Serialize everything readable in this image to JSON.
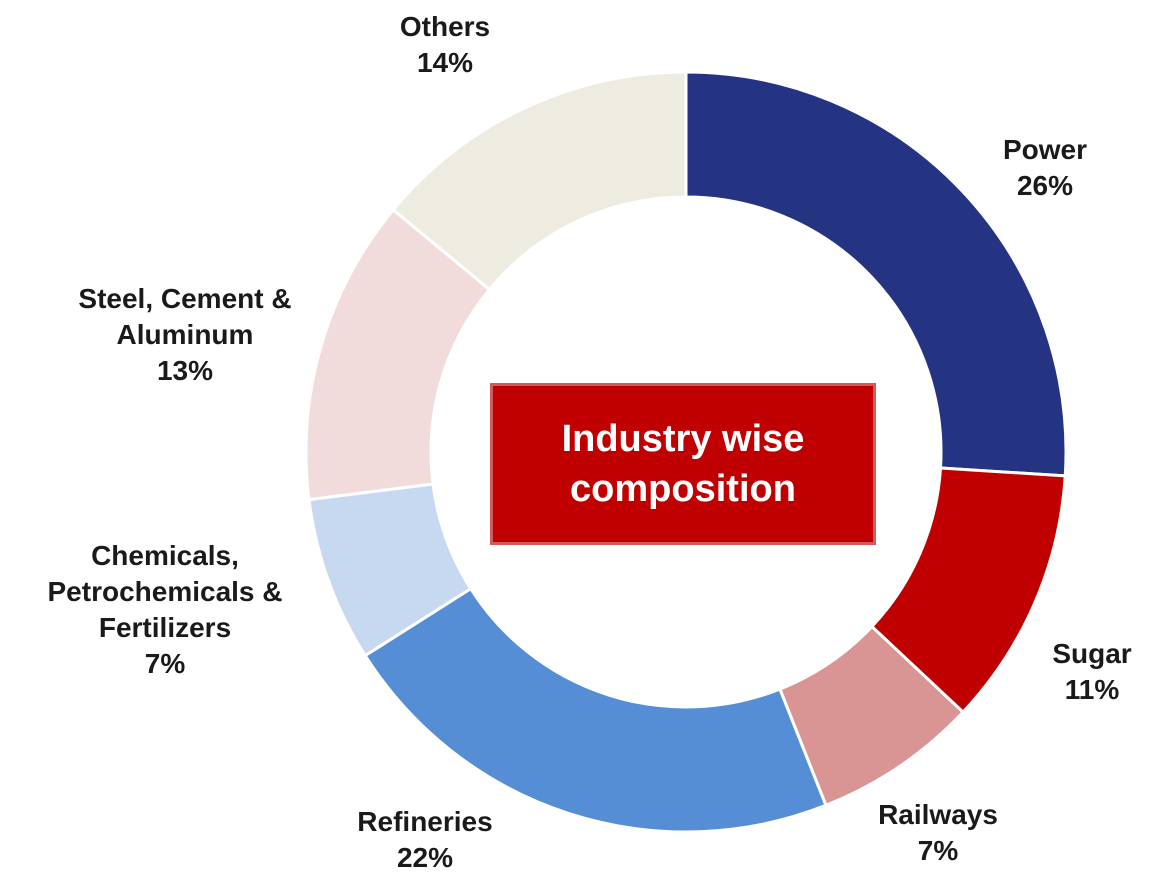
{
  "chart_data": {
    "type": "donut",
    "annotation": "Industry wise composition",
    "categories": [
      "Power",
      "Sugar",
      "Railways",
      "Refineries",
      "Chemicals, Petrochemicals & Fertilizers",
      "Steel, Cement & Aluminum",
      "Others"
    ],
    "values": [
      26,
      11,
      7,
      22,
      7,
      13,
      14
    ],
    "value_labels": [
      "26%",
      "11%",
      "7%",
      "22%",
      "7%",
      "13%",
      "14%"
    ],
    "colors": [
      "#253383",
      "#c00000",
      "#d99594",
      "#558ed5",
      "#c6d9f1",
      "#f2dcdb",
      "#eeece1"
    ]
  }
}
